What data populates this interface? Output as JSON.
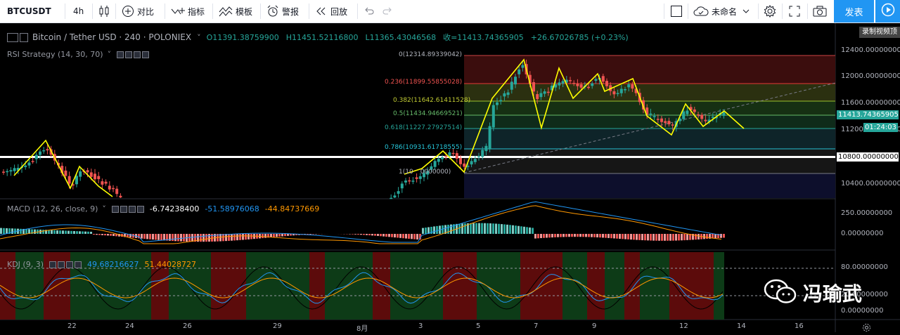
{
  "toolbar": {
    "symbol": "BTCUSDT",
    "interval": "4h",
    "compare": "对比",
    "indicators": "指标",
    "templates": "模板",
    "alert": "警报",
    "replay": "回放",
    "layout_name": "未命名",
    "publish": "发表",
    "tooltip": "录制视频顶"
  },
  "main_legend": {
    "title": "Bitcoin / Tether USD · 240 · POLONIEX",
    "o": "O11391.38759900",
    "h": "H11451.52116800",
    "l": "L11365.43046568",
    "c": "收=11413.74365905",
    "chg": "+26.67026785 (+0.23%)",
    "strategy": "RSI Strategy (14, 30, 70)"
  },
  "fib": {
    "l0": "0(12314.89339042)",
    "l236": "0.236(11899.55855028)",
    "l382": "0.382(11642.61411528)",
    "l5": "0.5(11434.94669521)",
    "l618": "0.618(11227.27927514)",
    "l786": "0.786(10931.61718555)",
    "l1": "1(10",
    "l1b": "0000000)"
  },
  "price_axis": [
    "12400.00000000",
    "12000.00000000",
    "11600.00000000",
    "11200.00000000",
    "10400.00000000"
  ],
  "price_badges": {
    "last": "11413.74365905",
    "countdown": "01:24:03",
    "line": "10800.00000000"
  },
  "macd": {
    "label": "MACD (12, 26, close, 9)",
    "v1": "-6.74238400",
    "v2": "-51.58976068",
    "v3": "-44.84737669",
    "axis": [
      "250.00000000",
      "0.00000000"
    ]
  },
  "kdj": {
    "label": "KDJ (9, 3)",
    "v1": "49.68216627",
    "v2": "51.44028727",
    "axis": [
      "80.00000000",
      "20.00000000",
      "0.00000000"
    ]
  },
  "x_axis": [
    "22",
    "24",
    "26",
    "29",
    "8月",
    "3",
    "5",
    "7",
    "9",
    "12",
    "14",
    "16"
  ],
  "watermark": "冯瑜武",
  "colors": {
    "up": "#26a69a",
    "down": "#ef5350",
    "accent": "#2196f3",
    "arrows": "#ffff00"
  }
}
